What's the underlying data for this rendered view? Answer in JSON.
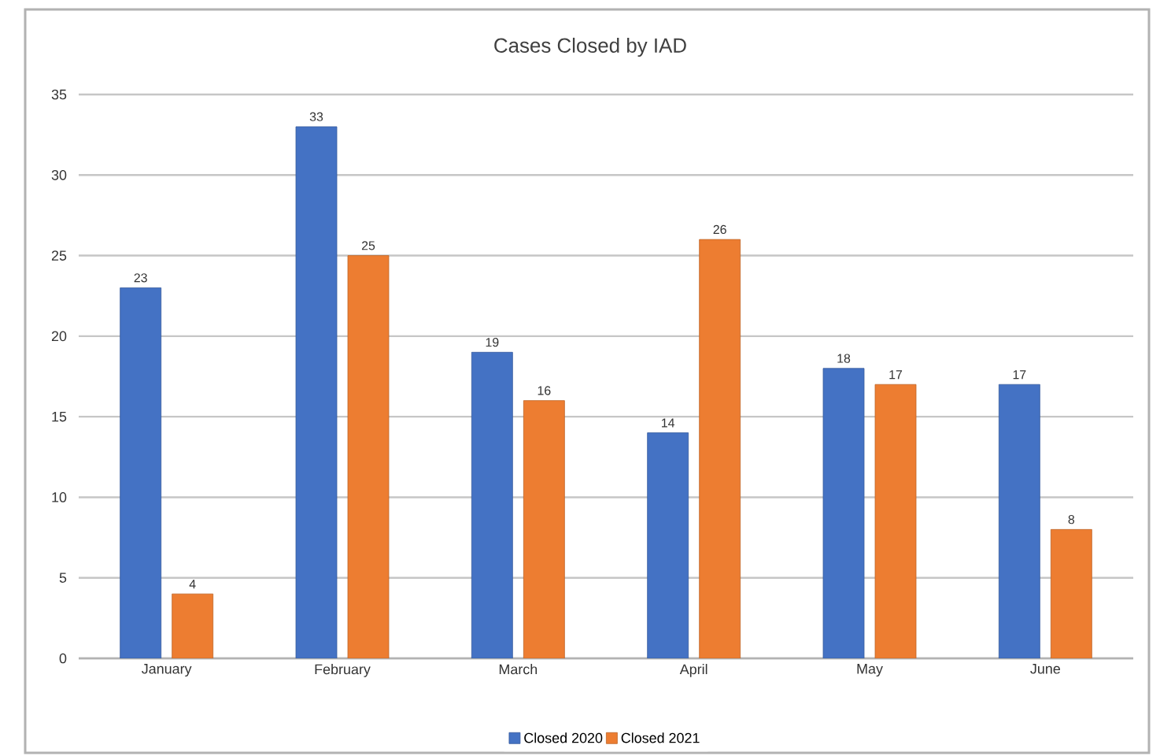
{
  "chart_data": {
    "type": "bar",
    "title": "Cases Closed by IAD",
    "categories": [
      "January",
      "February",
      "March",
      "April",
      "May",
      "June"
    ],
    "series": [
      {
        "name": "Closed 2020",
        "color": "#4472c4",
        "values": [
          23,
          33,
          19,
          14,
          18,
          17
        ]
      },
      {
        "name": "Closed 2021",
        "color": "#ed7d31",
        "values": [
          4,
          25,
          16,
          26,
          17,
          8
        ]
      }
    ],
    "ylim": [
      0,
      35
    ],
    "yticks": [
      0,
      5,
      10,
      15,
      20,
      25,
      30,
      35
    ],
    "grid": "y",
    "legend": "bottom",
    "data_labels": true
  }
}
